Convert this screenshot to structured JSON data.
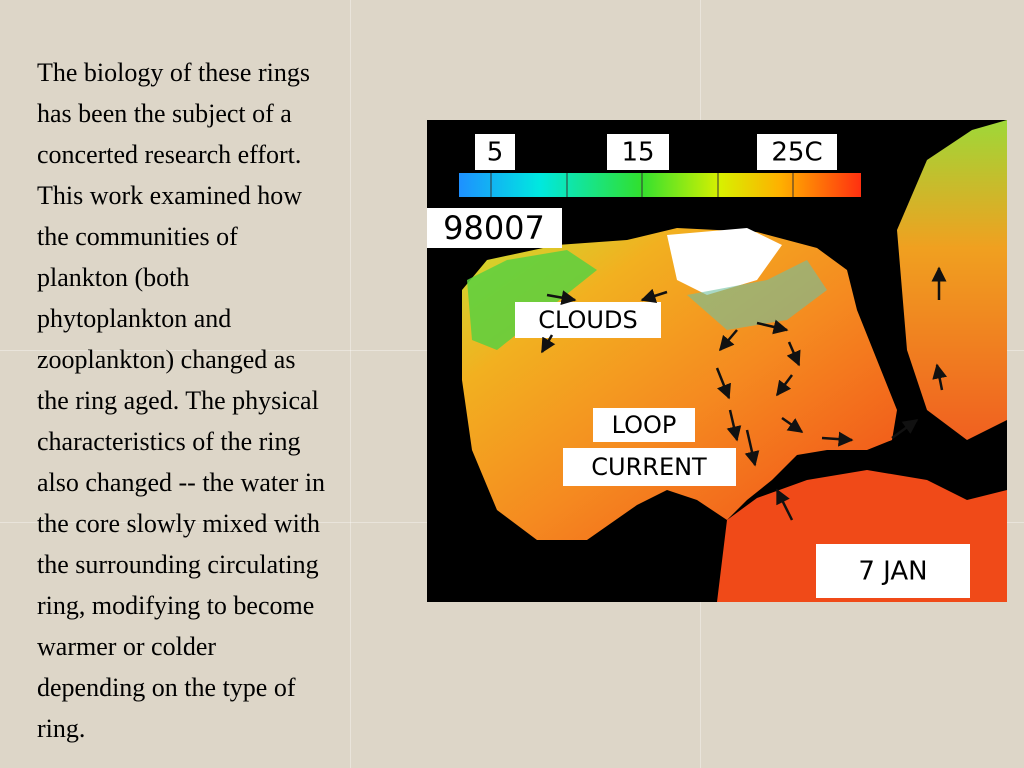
{
  "text": {
    "lines": [
      "The biology of these rings",
      "has been the subject of a",
      "concerted research effort.",
      "This work examined how",
      "the communities of",
      "plankton (both",
      "phytoplankton and",
      "zooplankton) changed as",
      "the ring aged. The physical",
      "characteristics of the ring",
      "also changed -- the water in",
      "the core slowly mixed with",
      "the surrounding circulating",
      "ring, modifying to become",
      "warmer or colder",
      "depending on the type of",
      "ring."
    ]
  },
  "figure": {
    "scale_labels": [
      "5",
      "15",
      "25C"
    ],
    "image_id": "98007",
    "clouds": "CLOUDS",
    "loop": "LOOP",
    "current": "CURRENT",
    "date": "7 JAN"
  }
}
